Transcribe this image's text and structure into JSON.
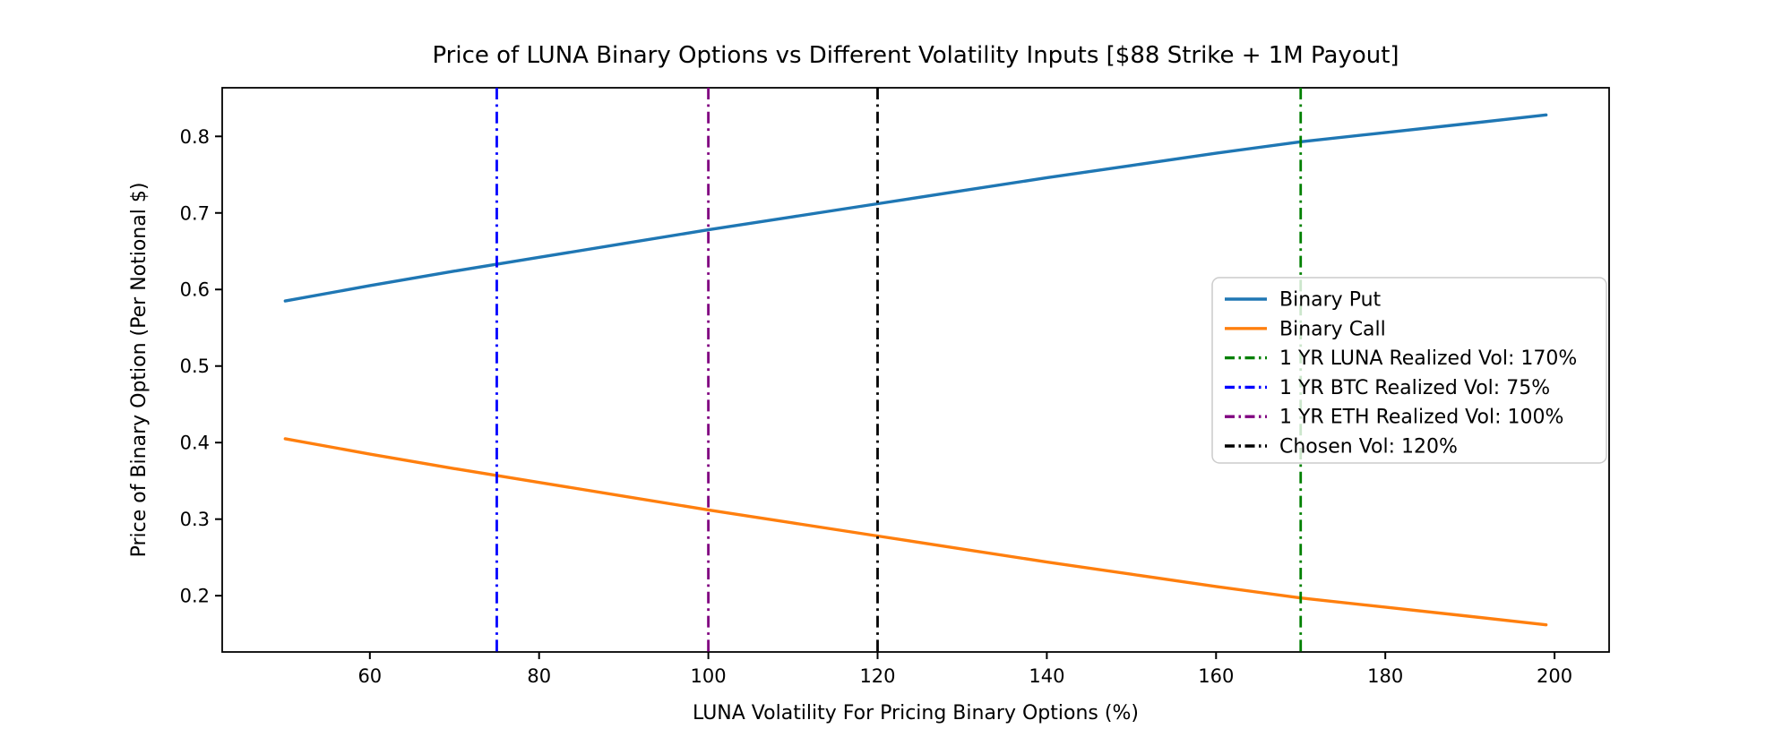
{
  "chart_data": {
    "type": "line",
    "title": "Price of LUNA Binary Options vs Different Volatility Inputs [$88 Strike + 1M Payout]",
    "xlabel": "LUNA Volatility For Pricing Binary Options (%)",
    "ylabel": "Price of Binary Option (Per Notional $)",
    "xlim": [
      42.55,
      206.45
    ],
    "ylim": [
      0.1265,
      0.8635
    ],
    "x_ticks": [
      60,
      80,
      100,
      120,
      140,
      160,
      180,
      200
    ],
    "y_ticks": [
      0.2,
      0.3,
      0.4,
      0.5,
      0.6,
      0.7,
      0.8
    ],
    "grid": false,
    "legend_position": "center-right",
    "series": [
      {
        "name": "Binary Put",
        "color": "#1f77b4",
        "style": "solid",
        "x": [
          50,
          60,
          70,
          80,
          90,
          100,
          110,
          120,
          130,
          140,
          150,
          160,
          170,
          180,
          190,
          199
        ],
        "y": [
          0.585,
          0.605,
          0.624,
          0.642,
          0.66,
          0.678,
          0.695,
          0.712,
          0.729,
          0.746,
          0.762,
          0.778,
          0.793,
          0.805,
          0.817,
          0.828
        ]
      },
      {
        "name": "Binary Call",
        "color": "#ff7f0e",
        "style": "solid",
        "x": [
          50,
          60,
          70,
          80,
          90,
          100,
          110,
          120,
          130,
          140,
          150,
          160,
          170,
          180,
          190,
          199
        ],
        "y": [
          0.405,
          0.385,
          0.366,
          0.348,
          0.33,
          0.312,
          0.295,
          0.278,
          0.261,
          0.244,
          0.228,
          0.212,
          0.197,
          0.185,
          0.173,
          0.162
        ]
      }
    ],
    "vlines": [
      {
        "label": "1 YR LUNA Realized Vol: 170%",
        "x": 170,
        "color": "#008000",
        "style": "dashdot"
      },
      {
        "label": "1 YR BTC Realized Vol: 75%",
        "x": 75,
        "color": "#0000ff",
        "style": "dashdot"
      },
      {
        "label": "1 YR ETH Realized Vol: 100%",
        "x": 100,
        "color": "#800080",
        "style": "dashdot"
      },
      {
        "label": "Chosen Vol: 120%",
        "x": 120,
        "color": "#000000",
        "style": "dashdot"
      }
    ],
    "legend_entries": [
      "Binary Put",
      "Binary Call",
      "1 YR LUNA Realized Vol: 170%",
      "1 YR BTC Realized Vol: 75%",
      "1 YR ETH Realized Vol: 100%",
      "Chosen Vol: 120%"
    ]
  }
}
